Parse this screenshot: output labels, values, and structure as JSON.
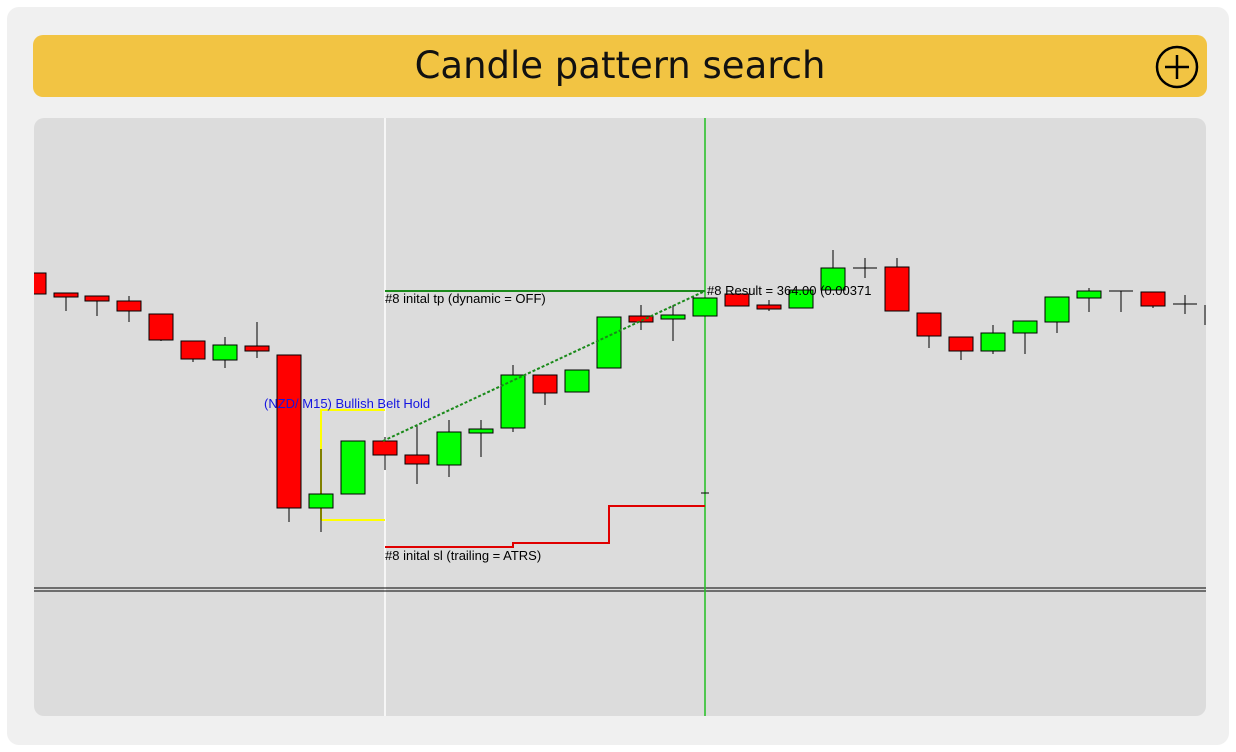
{
  "header": {
    "title": "Candle pattern search"
  },
  "chart": {
    "pattern_label": "(NZD/ M15) Bullish  Belt Hold",
    "tp_label": "#8 inital tp (dynamic = OFF)",
    "sl_label": "#8 inital sl (trailing = ATRS)",
    "result_label": "#8 Result = 364.00 (0.00371"
  }
}
